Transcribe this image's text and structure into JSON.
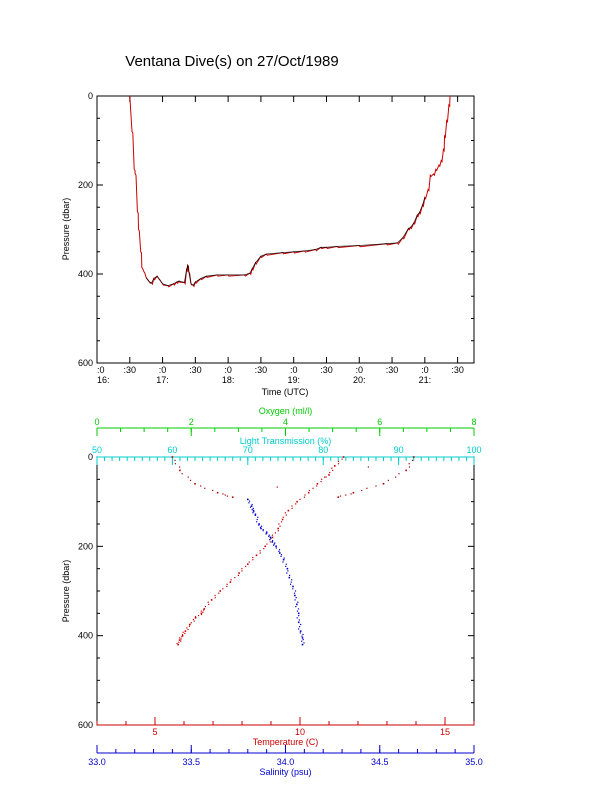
{
  "chart_data": [
    {
      "type": "line",
      "title": "Ventana Dive(s) on 27/Oct/1989",
      "xlabel": "Time (UTC)",
      "ylabel": "Pressure (dbar)",
      "ylim": [
        600,
        0
      ],
      "yticks": [
        0,
        200,
        400,
        600
      ],
      "xlim": [
        960,
        1305
      ],
      "xticks_top": [
        ":0",
        ":30",
        ":0",
        ":30",
        ":0",
        ":30",
        ":0",
        ":30",
        ":0",
        ":30",
        ":0",
        ":30"
      ],
      "xticks_bottom": [
        "16:",
        "17:",
        "18:",
        "19:",
        "20:",
        "21:"
      ],
      "grid": false,
      "colors": {
        "trace": "#cc0000",
        "mean": "#000000",
        "axes": "#000000"
      },
      "series": [
        {
          "x": [
            990,
            992,
            994,
            995,
            997,
            998,
            1000,
            1001,
            1003,
            1005,
            1008,
            1010,
            1012,
            1015,
            1018,
            1020,
            1025,
            1030,
            1033,
            1035,
            1040,
            1042,
            1043,
            1044,
            1046,
            1048,
            1050,
            1055,
            1060,
            1070,
            1080,
            1095,
            1100,
            1102,
            1105,
            1110,
            1115,
            1130,
            1140,
            1150,
            1160,
            1165,
            1170,
            1180,
            1200,
            1225,
            1235,
            1240,
            1245,
            1247,
            1250,
            1253,
            1255,
            1258,
            1260,
            1263,
            1265,
            1268,
            1270,
            1273,
            1275,
            1277,
            1278,
            1280,
            1282,
            1283
          ],
          "y": [
            0,
            80,
            165,
            175,
            260,
            300,
            350,
            385,
            395,
            408,
            418,
            420,
            410,
            405,
            415,
            422,
            426,
            422,
            418,
            416,
            419,
            390,
            380,
            395,
            422,
            425,
            418,
            410,
            405,
            402,
            402,
            402,
            398,
            388,
            375,
            360,
            355,
            352,
            350,
            348,
            345,
            340,
            340,
            338,
            336,
            332,
            330,
            318,
            298,
            295,
            285,
            268,
            262,
            245,
            228,
            210,
            178,
            175,
            165,
            155,
            145,
            120,
            90,
            55,
            20,
            0
          ]
        }
      ]
    },
    {
      "type": "scatter",
      "ylabel": "Pressure (dbar)",
      "ylim": [
        600,
        0
      ],
      "yticks": [
        0,
        200,
        400,
        600
      ],
      "axes": {
        "oxygen": {
          "label": "Oxygen (ml/l)",
          "range": [
            0,
            8
          ],
          "ticks": [
            "0",
            "2",
            "4",
            "6",
            "8"
          ],
          "color": "#00cc00"
        },
        "transmission": {
          "label": "Light Transmission (%)",
          "range": [
            50,
            100
          ],
          "ticks": [
            "50",
            "60",
            "70",
            "80",
            "90",
            "100"
          ],
          "color": "#00cccc"
        },
        "temperature": {
          "label": "Temperature (C)",
          "range": [
            3,
            16
          ],
          "ticks": [
            "5",
            "10",
            "15"
          ],
          "color": "#cc0000"
        },
        "salinity": {
          "label": "Salinity (psu)",
          "range": [
            33.0,
            35.0
          ],
          "ticks": [
            "33.0",
            "33.5",
            "34.0",
            "34.5",
            "35.0"
          ],
          "color": "#0000cc"
        }
      },
      "series": [
        {
          "axis": "temperature",
          "color": "#cc0000",
          "points": [
            [
              11.5,
              0
            ],
            [
              11.2,
              20
            ],
            [
              11.0,
              40
            ],
            [
              10.6,
              60
            ],
            [
              10.3,
              80
            ],
            [
              9.9,
              100
            ],
            [
              9.6,
              120
            ],
            [
              9.4,
              140
            ],
            [
              9.25,
              160
            ],
            [
              9.05,
              180
            ],
            [
              8.8,
              200
            ],
            [
              8.5,
              220
            ],
            [
              8.2,
              240
            ],
            [
              7.9,
              260
            ],
            [
              7.6,
              280
            ],
            [
              7.25,
              300
            ],
            [
              6.95,
              320
            ],
            [
              6.7,
              340
            ],
            [
              6.6,
              350
            ],
            [
              6.4,
              360
            ],
            [
              6.2,
              375
            ],
            [
              6.05,
              390
            ],
            [
              5.95,
              400
            ],
            [
              5.85,
              410
            ],
            [
              5.8,
              420
            ]
          ]
        },
        {
          "axis": "salinity",
          "color": "#0000cc",
          "points": [
            [
              33.8,
              95
            ],
            [
              33.82,
              110
            ],
            [
              33.83,
              120
            ],
            [
              33.84,
              130
            ],
            [
              33.86,
              150
            ],
            [
              33.87,
              160
            ],
            [
              33.9,
              170
            ],
            [
              33.92,
              180
            ],
            [
              33.93,
              190
            ],
            [
              33.95,
              200
            ],
            [
              33.97,
              215
            ],
            [
              33.99,
              230
            ],
            [
              34.01,
              250
            ],
            [
              34.02,
              270
            ],
            [
              34.04,
              290
            ],
            [
              34.05,
              310
            ],
            [
              34.06,
              330
            ],
            [
              34.07,
              350
            ],
            [
              34.07,
              370
            ],
            [
              34.08,
              390
            ],
            [
              34.09,
              405
            ],
            [
              34.09,
              420
            ]
          ]
        },
        {
          "axis": "transmission",
          "color": "#aa0000",
          "points": [
            [
              60,
              0
            ],
            [
              61,
              30
            ],
            [
              63,
              60
            ],
            [
              66,
              80
            ],
            [
              68,
              90
            ],
            [
              92,
              0
            ],
            [
              91,
              30
            ],
            [
              88,
              60
            ],
            [
              84,
              80
            ],
            [
              82,
              90
            ]
          ]
        }
      ]
    }
  ]
}
